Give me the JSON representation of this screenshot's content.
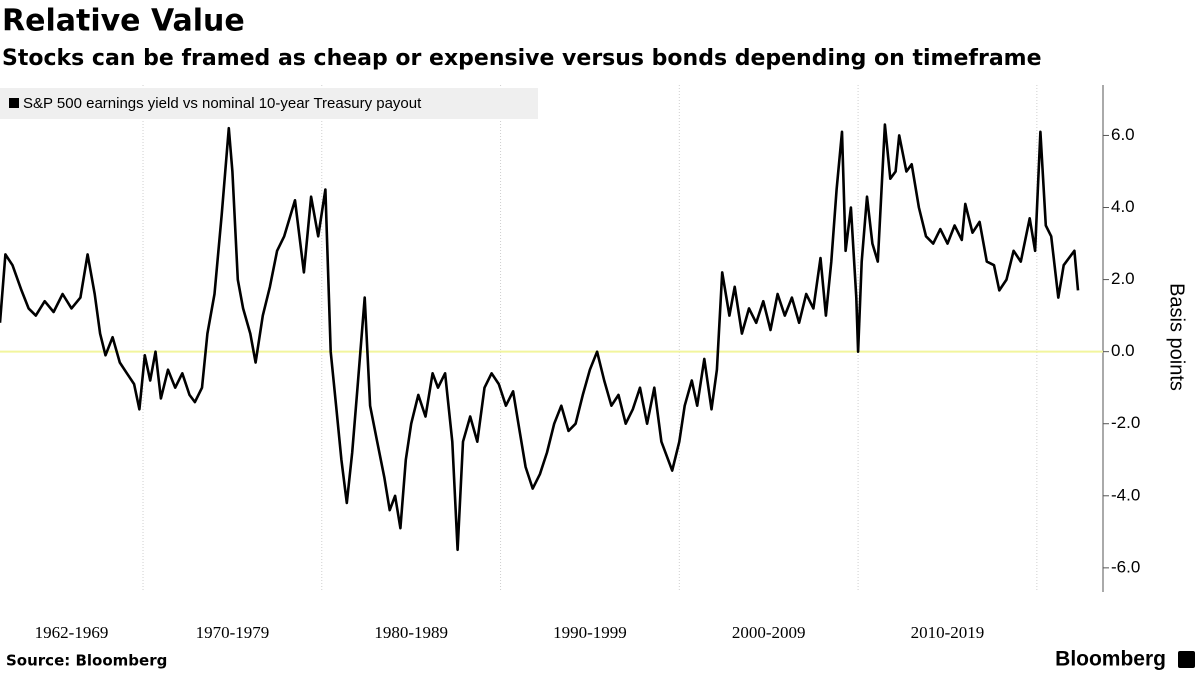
{
  "chart_data": {
    "type": "line",
    "title": "Relative Value",
    "subtitle": "Stocks can be framed as cheap or expensive versus bonds depending on timeframe",
    "y_label": "Basis points",
    "source": "Source: Bloomberg",
    "brand": "Bloomberg",
    "legend": "top-left",
    "grid": true,
    "reference_line": {
      "value": 0,
      "color": "#f2f59e"
    },
    "xlim": [
      1962,
      2023.7
    ],
    "ylim": [
      -6.67,
      7.4
    ],
    "yticks": [
      {
        "value": 6,
        "label": "6.0"
      },
      {
        "value": 4,
        "label": "4.0"
      },
      {
        "value": 2,
        "label": "2.0"
      },
      {
        "value": 0,
        "label": "0.0"
      },
      {
        "value": -2,
        "label": "-2.0"
      },
      {
        "value": -4,
        "label": "-4.0"
      },
      {
        "value": -6,
        "label": "-6.0"
      }
    ],
    "xgrid": [
      1970,
      1980,
      1990,
      2000,
      2010,
      2020
    ],
    "x_bands": [
      {
        "label": "1962-1969",
        "range": [
          1962,
          1970
        ]
      },
      {
        "label": "1970-1979",
        "range": [
          1970,
          1980
        ]
      },
      {
        "label": "1980-1989",
        "range": [
          1980,
          1990
        ]
      },
      {
        "label": "1990-1999",
        "range": [
          1990,
          2000
        ]
      },
      {
        "label": "2000-2009",
        "range": [
          2000,
          2010
        ]
      },
      {
        "label": "2010-2019",
        "range": [
          2010,
          2020
        ]
      }
    ],
    "series": [
      {
        "name": "S&P 500 earnings yield vs nominal 10-year Treasury payout",
        "color": "#000000",
        "x": [
          1962.0,
          1962.3,
          1962.7,
          1963.2,
          1963.6,
          1964.0,
          1964.5,
          1965.0,
          1965.5,
          1966.0,
          1966.5,
          1966.9,
          1967.3,
          1967.6,
          1967.9,
          1968.3,
          1968.7,
          1969.1,
          1969.5,
          1969.8,
          1970.1,
          1970.4,
          1970.7,
          1971.0,
          1971.4,
          1971.8,
          1972.2,
          1972.6,
          1972.9,
          1973.3,
          1973.6,
          1974.0,
          1974.4,
          1974.8,
          1975.0,
          1975.3,
          1975.6,
          1976.0,
          1976.3,
          1976.7,
          1977.1,
          1977.5,
          1977.9,
          1978.5,
          1979.0,
          1979.4,
          1979.8,
          1980.2,
          1980.5,
          1980.8,
          1981.1,
          1981.4,
          1981.7,
          1982.0,
          1982.4,
          1982.7,
          1983.1,
          1983.5,
          1983.8,
          1984.1,
          1984.4,
          1984.7,
          1985.0,
          1985.4,
          1985.8,
          1986.2,
          1986.5,
          1986.9,
          1987.3,
          1987.6,
          1987.9,
          1988.3,
          1988.7,
          1989.1,
          1989.5,
          1989.9,
          1990.3,
          1990.7,
          1991.0,
          1991.4,
          1991.8,
          1992.2,
          1992.6,
          1993.0,
          1993.4,
          1993.8,
          1994.2,
          1994.6,
          1995.0,
          1995.4,
          1995.8,
          1996.2,
          1996.6,
          1997.0,
          1997.4,
          1997.8,
          1998.2,
          1998.6,
          1999.0,
          1999.6,
          2000.0,
          2000.3,
          2000.7,
          2001.0,
          2001.4,
          2001.8,
          2002.1,
          2002.4,
          2002.8,
          2003.1,
          2003.5,
          2003.9,
          2004.3,
          2004.7,
          2005.1,
          2005.5,
          2005.9,
          2006.3,
          2006.7,
          2007.1,
          2007.5,
          2007.9,
          2008.2,
          2008.5,
          2008.8,
          2009.1,
          2009.3,
          2009.6,
          2009.9,
          2010.0,
          2010.2,
          2010.5,
          2010.8,
          2011.1,
          2011.5,
          2011.8,
          2012.1,
          2012.3,
          2012.7,
          2013.0,
          2013.4,
          2013.8,
          2014.2,
          2014.6,
          2015.0,
          2015.4,
          2015.8,
          2016.0,
          2016.4,
          2016.8,
          2017.2,
          2017.6,
          2017.9,
          2018.3,
          2018.7,
          2019.1,
          2019.6,
          2019.9,
          2020.2,
          2020.5,
          2020.8,
          2021.2,
          2021.5,
          2021.8,
          2022.1,
          2022.3
        ],
        "values": [
          0.8,
          2.7,
          2.4,
          1.7,
          1.2,
          1.0,
          1.4,
          1.1,
          1.6,
          1.2,
          1.5,
          2.7,
          1.6,
          0.5,
          -0.1,
          0.4,
          -0.3,
          -0.6,
          -0.9,
          -1.6,
          -0.1,
          -0.8,
          0.0,
          -1.3,
          -0.5,
          -1.0,
          -0.6,
          -1.2,
          -1.4,
          -1.0,
          0.5,
          1.6,
          3.8,
          6.2,
          5.0,
          2.0,
          1.2,
          0.5,
          -0.3,
          1.0,
          1.8,
          2.8,
          3.2,
          4.2,
          2.2,
          4.3,
          3.2,
          4.5,
          0.0,
          -1.5,
          -3.0,
          -4.2,
          -2.8,
          -1.0,
          1.5,
          -1.5,
          -2.5,
          -3.5,
          -4.4,
          -4.0,
          -4.9,
          -3.0,
          -2.0,
          -1.2,
          -1.8,
          -0.6,
          -1.0,
          -0.6,
          -2.5,
          -5.5,
          -2.5,
          -1.8,
          -2.5,
          -1.0,
          -0.6,
          -0.9,
          -1.5,
          -1.1,
          -2.0,
          -3.2,
          -3.8,
          -3.4,
          -2.8,
          -2.0,
          -1.5,
          -2.2,
          -2.0,
          -1.2,
          -0.5,
          0.0,
          -0.8,
          -1.5,
          -1.2,
          -2.0,
          -1.6,
          -1.0,
          -2.0,
          -1.0,
          -2.5,
          -3.3,
          -2.5,
          -1.5,
          -0.8,
          -1.5,
          -0.2,
          -1.6,
          -0.5,
          2.2,
          1.0,
          1.8,
          0.5,
          1.2,
          0.8,
          1.4,
          0.6,
          1.6,
          1.0,
          1.5,
          0.8,
          1.6,
          1.2,
          2.6,
          1.0,
          2.5,
          4.5,
          6.1,
          2.8,
          4.0,
          1.5,
          0.0,
          2.5,
          4.3,
          3.0,
          2.5,
          6.3,
          4.8,
          5.0,
          6.0,
          5.0,
          5.2,
          4.0,
          3.2,
          3.0,
          3.4,
          3.0,
          3.5,
          3.1,
          4.1,
          3.3,
          3.6,
          2.5,
          2.4,
          1.7,
          2.0,
          2.8,
          2.5,
          3.7,
          2.8,
          6.1,
          3.5,
          3.2,
          1.5,
          2.4,
          2.6,
          2.8,
          1.7
        ]
      }
    ]
  }
}
